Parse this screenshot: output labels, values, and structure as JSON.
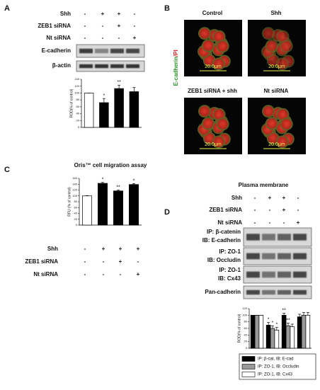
{
  "panels": {
    "A": {
      "label": "A",
      "conditions": [
        {
          "name": "Shh",
          "signs": [
            "-",
            "+",
            "+",
            "-"
          ]
        },
        {
          "name": "ZEB1 siRNA",
          "signs": [
            "-",
            "-",
            "+",
            "-"
          ]
        },
        {
          "name": "Nt siRNA",
          "signs": [
            "-",
            "-",
            "-",
            "+"
          ]
        }
      ],
      "blots": [
        "E-cadherin",
        "β-actin"
      ]
    },
    "B": {
      "label": "B",
      "stain": [
        "E-cadherin",
        "/PI"
      ],
      "images": [
        {
          "title": "Control",
          "scale": "20.0μm"
        },
        {
          "title": "Shh",
          "scale": "20.0μm"
        },
        {
          "title": "ZEB1 siRNA + shh",
          "scale": "20.0μm"
        },
        {
          "title": "Nt siRNA",
          "scale": "20.0μm"
        }
      ]
    },
    "C": {
      "label": "C",
      "conditions": [
        {
          "name": "Shh",
          "signs": [
            "-",
            "+",
            "+",
            "+"
          ]
        },
        {
          "name": "ZEB1 siRNA",
          "signs": [
            "-",
            "-",
            "+",
            "-"
          ]
        },
        {
          "name": "Nt siRNA",
          "signs": [
            "-",
            "-",
            "-",
            "+"
          ]
        }
      ]
    },
    "D": {
      "label": "D",
      "heading": "Plasma membrane",
      "conditions": [
        {
          "name": "Shh",
          "signs": [
            "-",
            "+",
            "+",
            "-"
          ]
        },
        {
          "name": "ZEB1 siRNA",
          "signs": [
            "-",
            "-",
            "+",
            "-"
          ]
        },
        {
          "name": "Nt siRNA",
          "signs": [
            "-",
            "-",
            "-",
            "+"
          ]
        }
      ],
      "blots": [
        [
          "IP: β-catenin",
          "IB: E-cadherin"
        ],
        [
          "IP: ZO-1",
          "IB: Occludin"
        ],
        [
          "IP: ZO-1",
          "IB: Cx43"
        ],
        [
          "Pan-cadherin"
        ]
      ]
    }
  },
  "chart_data": [
    {
      "type": "bar",
      "y_label": "ROD(% of control)",
      "categories": [
        null,
        null,
        null,
        null
      ],
      "values": [
        100,
        72,
        113,
        104
      ],
      "errors": [
        0,
        12,
        10,
        12
      ],
      "colors": [
        "#ffffff",
        "#000000",
        "#000000",
        "#000000"
      ],
      "annotations": [
        null,
        "*",
        "**",
        null
      ],
      "ylim": [
        0,
        140
      ],
      "yticks": [
        0,
        20,
        40,
        60,
        80,
        100,
        120,
        140
      ]
    },
    {
      "type": "bar",
      "title": "Oris™ cell migration assay",
      "y_label": "RFU (% of control)",
      "categories": [
        null,
        null,
        null,
        null
      ],
      "values": [
        100,
        143,
        117,
        139
      ],
      "errors": [
        1,
        3,
        3,
        3
      ],
      "colors": [
        "#ffffff",
        "#000000",
        "#000000",
        "#000000"
      ],
      "annotations": [
        null,
        "*",
        "**",
        "*"
      ],
      "ylim": [
        0,
        160
      ],
      "yticks": [
        0,
        20,
        40,
        60,
        80,
        100,
        120,
        140,
        160
      ]
    },
    {
      "type": "grouped_bar",
      "y_label": "ROD(% of control)",
      "categories": [
        null,
        null,
        null,
        null
      ],
      "series": [
        {
          "name": "IP: β-cat, IB: E-cad",
          "color": "#000000",
          "values": [
            100,
            70,
            100,
            95
          ],
          "errors": [
            0,
            8,
            6,
            8
          ],
          "annotations": [
            null,
            "*",
            "**",
            null
          ]
        },
        {
          "name": "IP: ZO-1, IB: Occludin",
          "color": "#999999",
          "values": [
            100,
            60,
            68,
            100
          ],
          "errors": [
            0,
            8,
            8,
            8
          ],
          "annotations": [
            null,
            "*",
            "**",
            null
          ]
        },
        {
          "name": "IP: ZO-1, IB: Cx43",
          "color": "#ffffff",
          "values": [
            100,
            55,
            65,
            100
          ],
          "errors": [
            0,
            8,
            8,
            8
          ],
          "annotations": [
            null,
            "*",
            null,
            null
          ]
        }
      ],
      "ylim": [
        0,
        120
      ],
      "yticks": [
        0,
        20,
        40,
        60,
        80,
        100,
        120
      ],
      "legend": "bottom"
    }
  ]
}
